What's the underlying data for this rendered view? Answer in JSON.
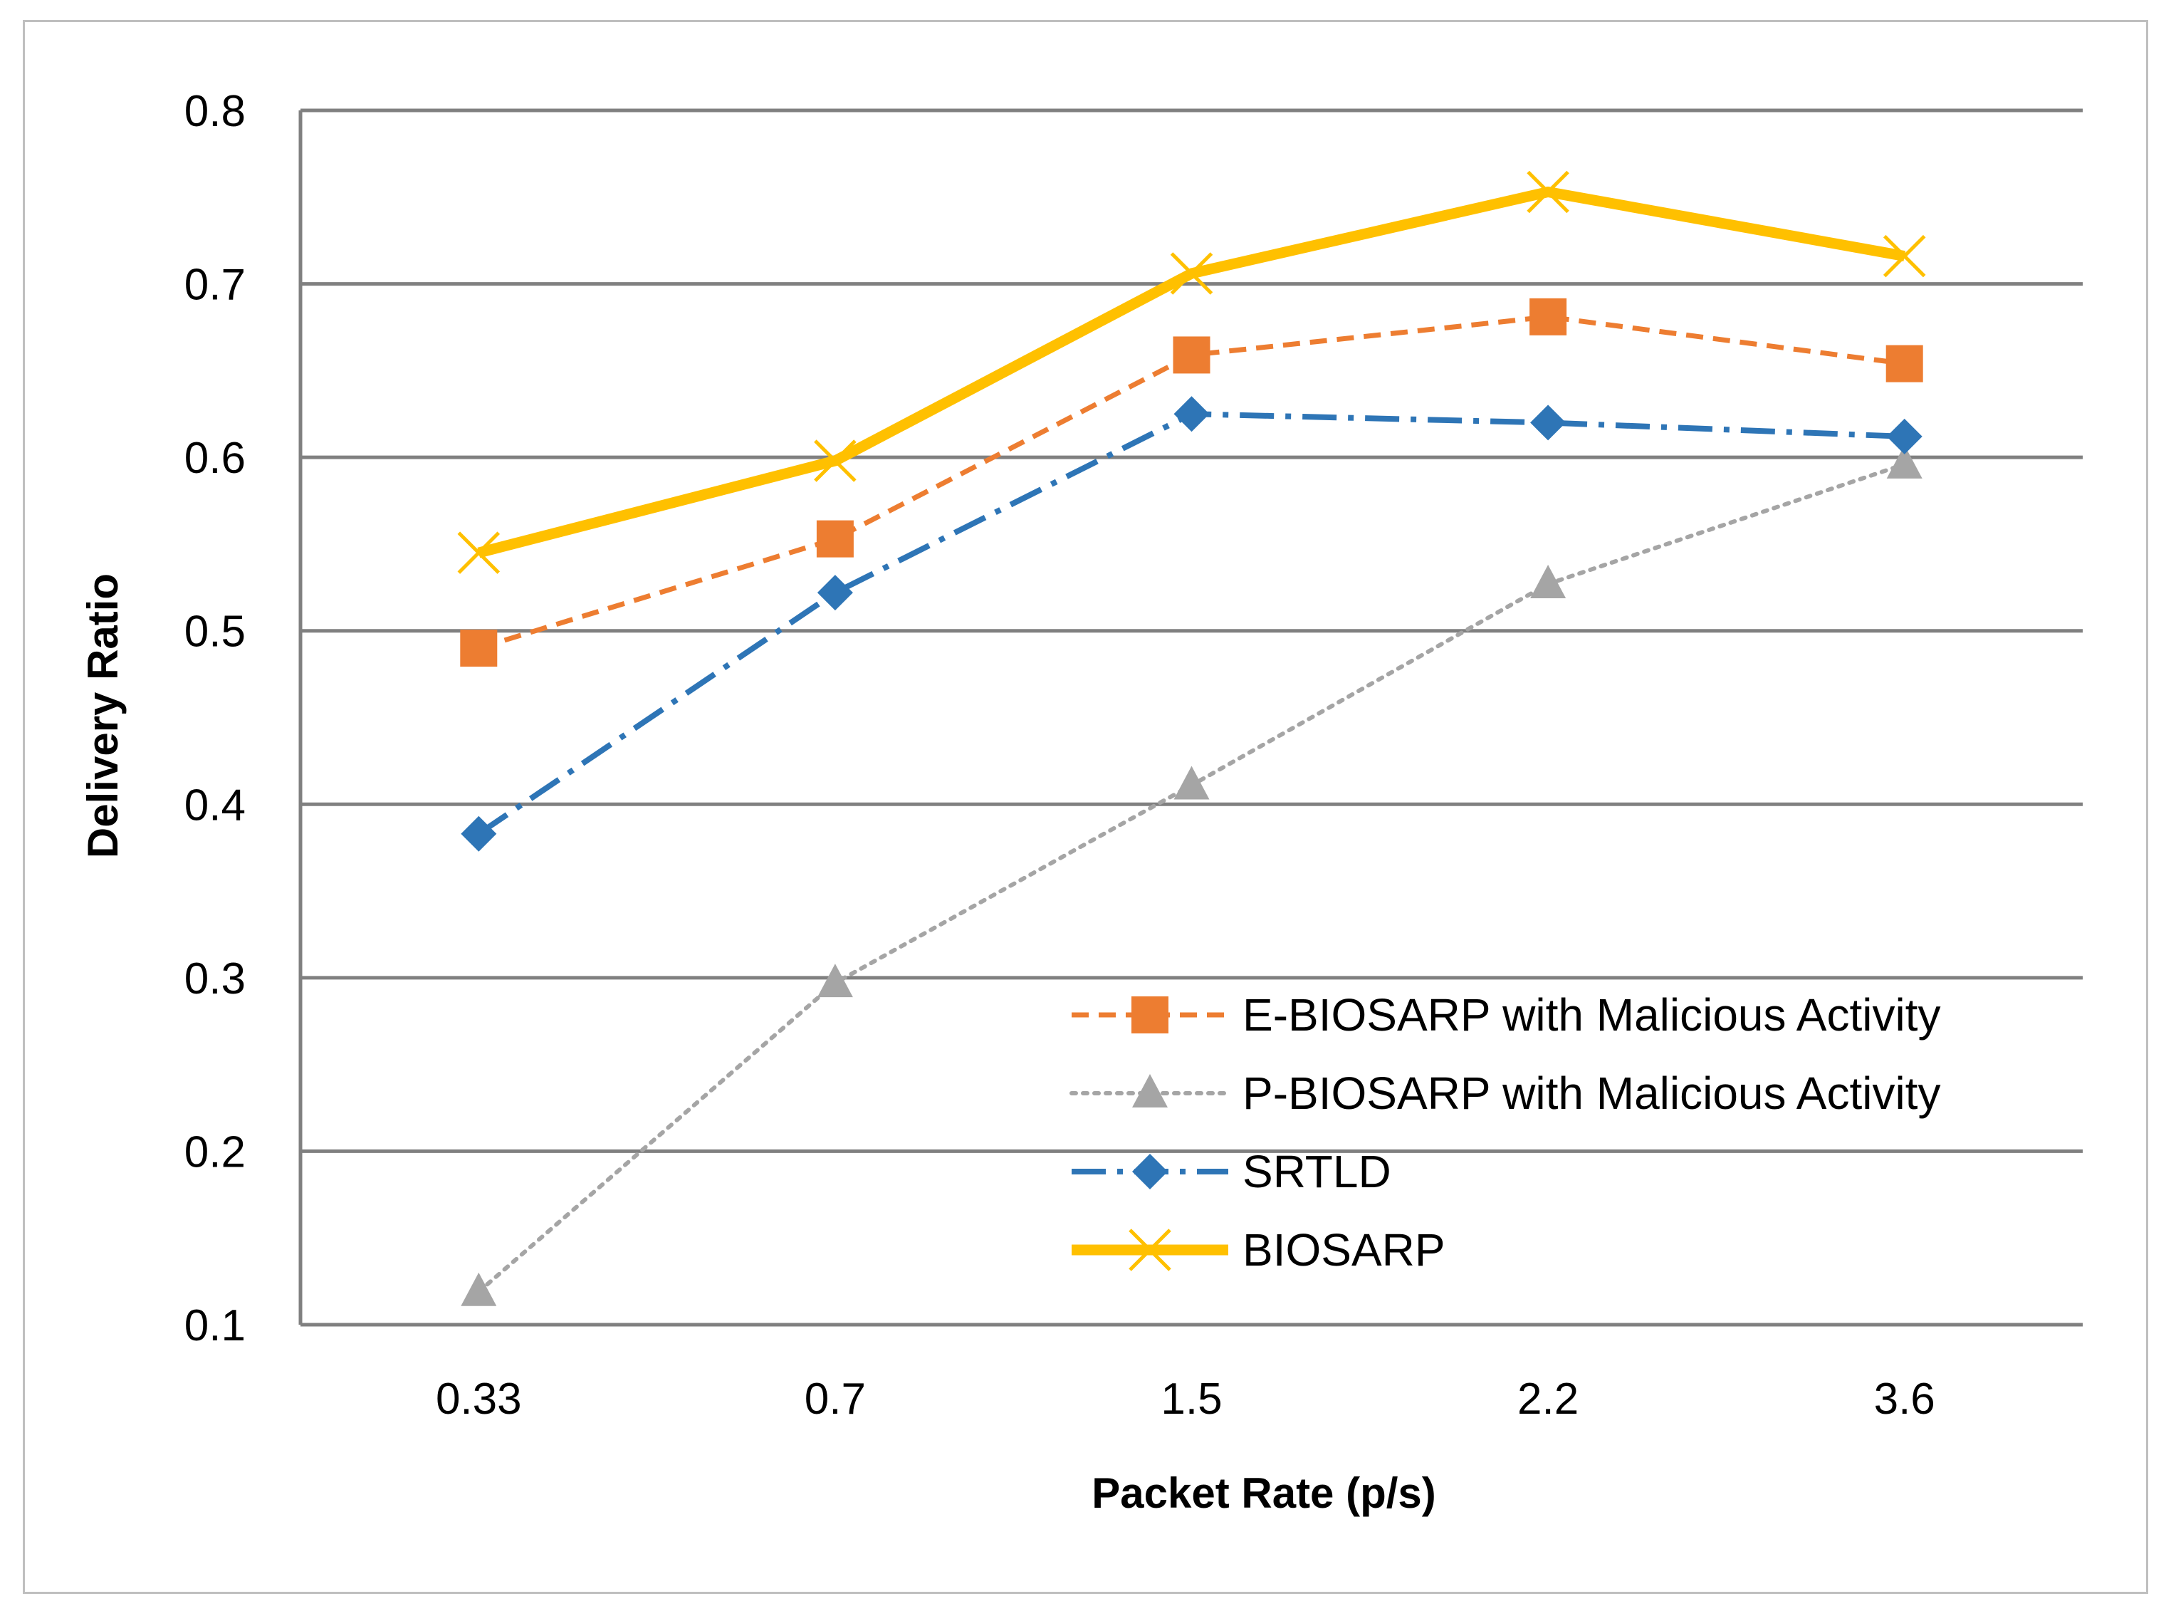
{
  "chart_data": {
    "type": "line",
    "title": "",
    "xlabel": "Packet Rate (p/s)",
    "ylabel": "Delivery Ratio",
    "categories": [
      "0.33",
      "0.7",
      "1.5",
      "2.2",
      "3.6"
    ],
    "ylim": [
      0.1,
      0.8
    ],
    "yticks": [
      0.1,
      0.2,
      0.3,
      0.4,
      0.5,
      0.6,
      0.7,
      0.8
    ],
    "ytick_labels": [
      "0.1",
      "0.2",
      "0.3",
      "0.4",
      "0.5",
      "0.6",
      "0.7",
      "0.8"
    ],
    "grid": true,
    "legend_position": "bottom-right",
    "series": [
      {
        "name": "E-BIOSARP with Malicious Activity",
        "values": [
          0.49,
          0.553,
          0.659,
          0.681,
          0.654
        ],
        "color": "#ED7D31",
        "line": "dashed",
        "marker": "square"
      },
      {
        "name": "P-BIOSARP with Malicious Activity",
        "values": [
          0.119,
          0.297,
          0.411,
          0.527,
          0.596
        ],
        "color": "#A5A5A5",
        "line": "dotted",
        "marker": "triangle"
      },
      {
        "name": "SRTLD",
        "values": [
          0.383,
          0.522,
          0.625,
          0.62,
          0.612
        ],
        "color": "#2E75B6",
        "line": "dashdot",
        "marker": "diamond"
      },
      {
        "name": "BIOSARP",
        "values": [
          0.545,
          0.598,
          0.706,
          0.753,
          0.716
        ],
        "color": "#FFC000",
        "line": "solid",
        "marker": "x"
      }
    ]
  }
}
